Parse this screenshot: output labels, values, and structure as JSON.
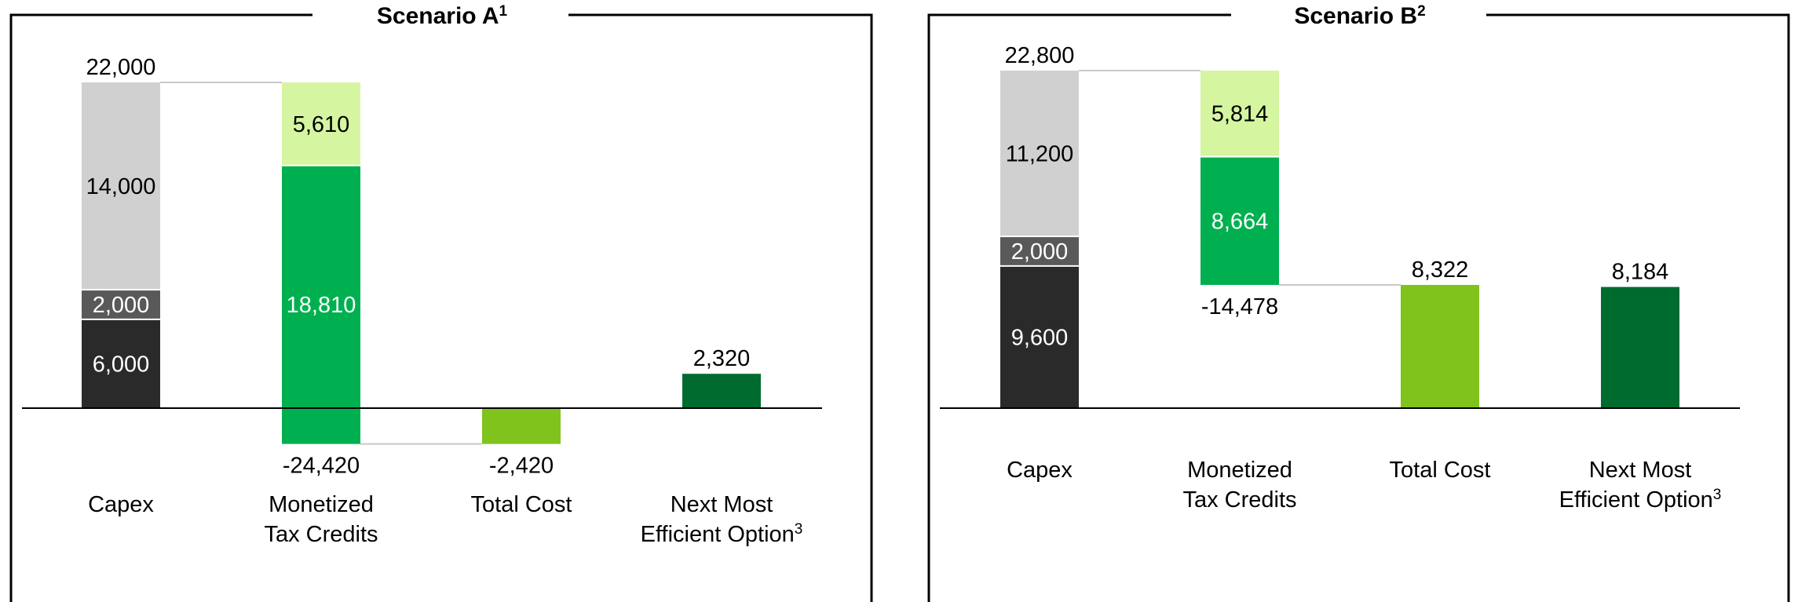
{
  "colors": {
    "capex_dark": "#2a2a2a",
    "capex_mid": "#595959",
    "capex_light": "#d0d0d0",
    "credit_green": "#00b050",
    "credit_light": "#d5f5a0",
    "total_cost": "#7fc31c",
    "next_option": "#006b2e",
    "connector": "#c8c8c8",
    "axis": "#000000"
  },
  "chart_data": [
    {
      "type": "bar",
      "subtype": "waterfall",
      "title": "Scenario A",
      "title_sup": "1",
      "categories": [
        {
          "line1": "Capex",
          "line2": "",
          "sup": ""
        },
        {
          "line1": "Monetized",
          "line2": "Tax Credits",
          "sup": ""
        },
        {
          "line1": "Total Cost",
          "line2": "",
          "sup": ""
        },
        {
          "line1": "Next Most",
          "line2": "Efficient Option",
          "sup": "3"
        }
      ],
      "bars": [
        {
          "category": 0,
          "segments": [
            {
              "value": 6000,
              "label": "6,000",
              "color_key": "capex_dark",
              "text_color": "#ffffff"
            },
            {
              "value": 2000,
              "label": "2,000",
              "color_key": "capex_mid",
              "text_color": "#ffffff"
            },
            {
              "value": 14000,
              "label": "14,000",
              "color_key": "capex_light",
              "text_color": "#000000"
            }
          ],
          "total_label": "22,000",
          "total_position": "above"
        },
        {
          "category": 1,
          "start": 22000,
          "segments": [
            {
              "value": -5610,
              "label": "5,610",
              "color_key": "credit_light",
              "text_color": "#000000"
            },
            {
              "value": -18810,
              "label": "18,810",
              "color_key": "credit_green",
              "text_color": "#ffffff"
            }
          ],
          "total_label": "-24,420",
          "total_position": "below"
        },
        {
          "category": 2,
          "segments": [
            {
              "value": -2420,
              "label": "",
              "color_key": "total_cost",
              "text_color": "#000000"
            }
          ],
          "total_label": "-2,420",
          "total_position": "below"
        },
        {
          "category": 3,
          "segments": [
            {
              "value": 2320,
              "label": "",
              "color_key": "next_option",
              "text_color": "#000000"
            }
          ],
          "total_label": "2,320",
          "total_position": "above"
        }
      ],
      "connectors": [
        {
          "from": 0,
          "to": 1,
          "value": 22000
        },
        {
          "from": 1,
          "to": 2,
          "value": -2420
        }
      ]
    },
    {
      "type": "bar",
      "subtype": "waterfall",
      "title": "Scenario B",
      "title_sup": "2",
      "categories": [
        {
          "line1": "Capex",
          "line2": "",
          "sup": ""
        },
        {
          "line1": "Monetized",
          "line2": "Tax Credits",
          "sup": ""
        },
        {
          "line1": "Total Cost",
          "line2": "",
          "sup": ""
        },
        {
          "line1": "Next Most",
          "line2": "Efficient Option",
          "sup": "3"
        }
      ],
      "bars": [
        {
          "category": 0,
          "segments": [
            {
              "value": 9600,
              "label": "9,600",
              "color_key": "capex_dark",
              "text_color": "#ffffff"
            },
            {
              "value": 2000,
              "label": "2,000",
              "color_key": "capex_mid",
              "text_color": "#ffffff"
            },
            {
              "value": 11200,
              "label": "11,200",
              "color_key": "capex_light",
              "text_color": "#000000"
            }
          ],
          "total_label": "22,800",
          "total_position": "above"
        },
        {
          "category": 1,
          "start": 22800,
          "segments": [
            {
              "value": -5814,
              "label": "5,814",
              "color_key": "credit_light",
              "text_color": "#000000"
            },
            {
              "value": -8664,
              "label": "8,664",
              "color_key": "credit_green",
              "text_color": "#ffffff"
            }
          ],
          "total_label": "-14,478",
          "total_position": "below"
        },
        {
          "category": 2,
          "segments": [
            {
              "value": 8322,
              "label": "",
              "color_key": "total_cost",
              "text_color": "#000000"
            }
          ],
          "total_label": "8,322",
          "total_position": "above"
        },
        {
          "category": 3,
          "segments": [
            {
              "value": 8184,
              "label": "",
              "color_key": "next_option",
              "text_color": "#000000"
            }
          ],
          "total_label": "8,184",
          "total_position": "above"
        }
      ],
      "connectors": [
        {
          "from": 0,
          "to": 1,
          "value": 22800
        },
        {
          "from": 1,
          "to": 2,
          "value": 8322
        }
      ]
    }
  ]
}
